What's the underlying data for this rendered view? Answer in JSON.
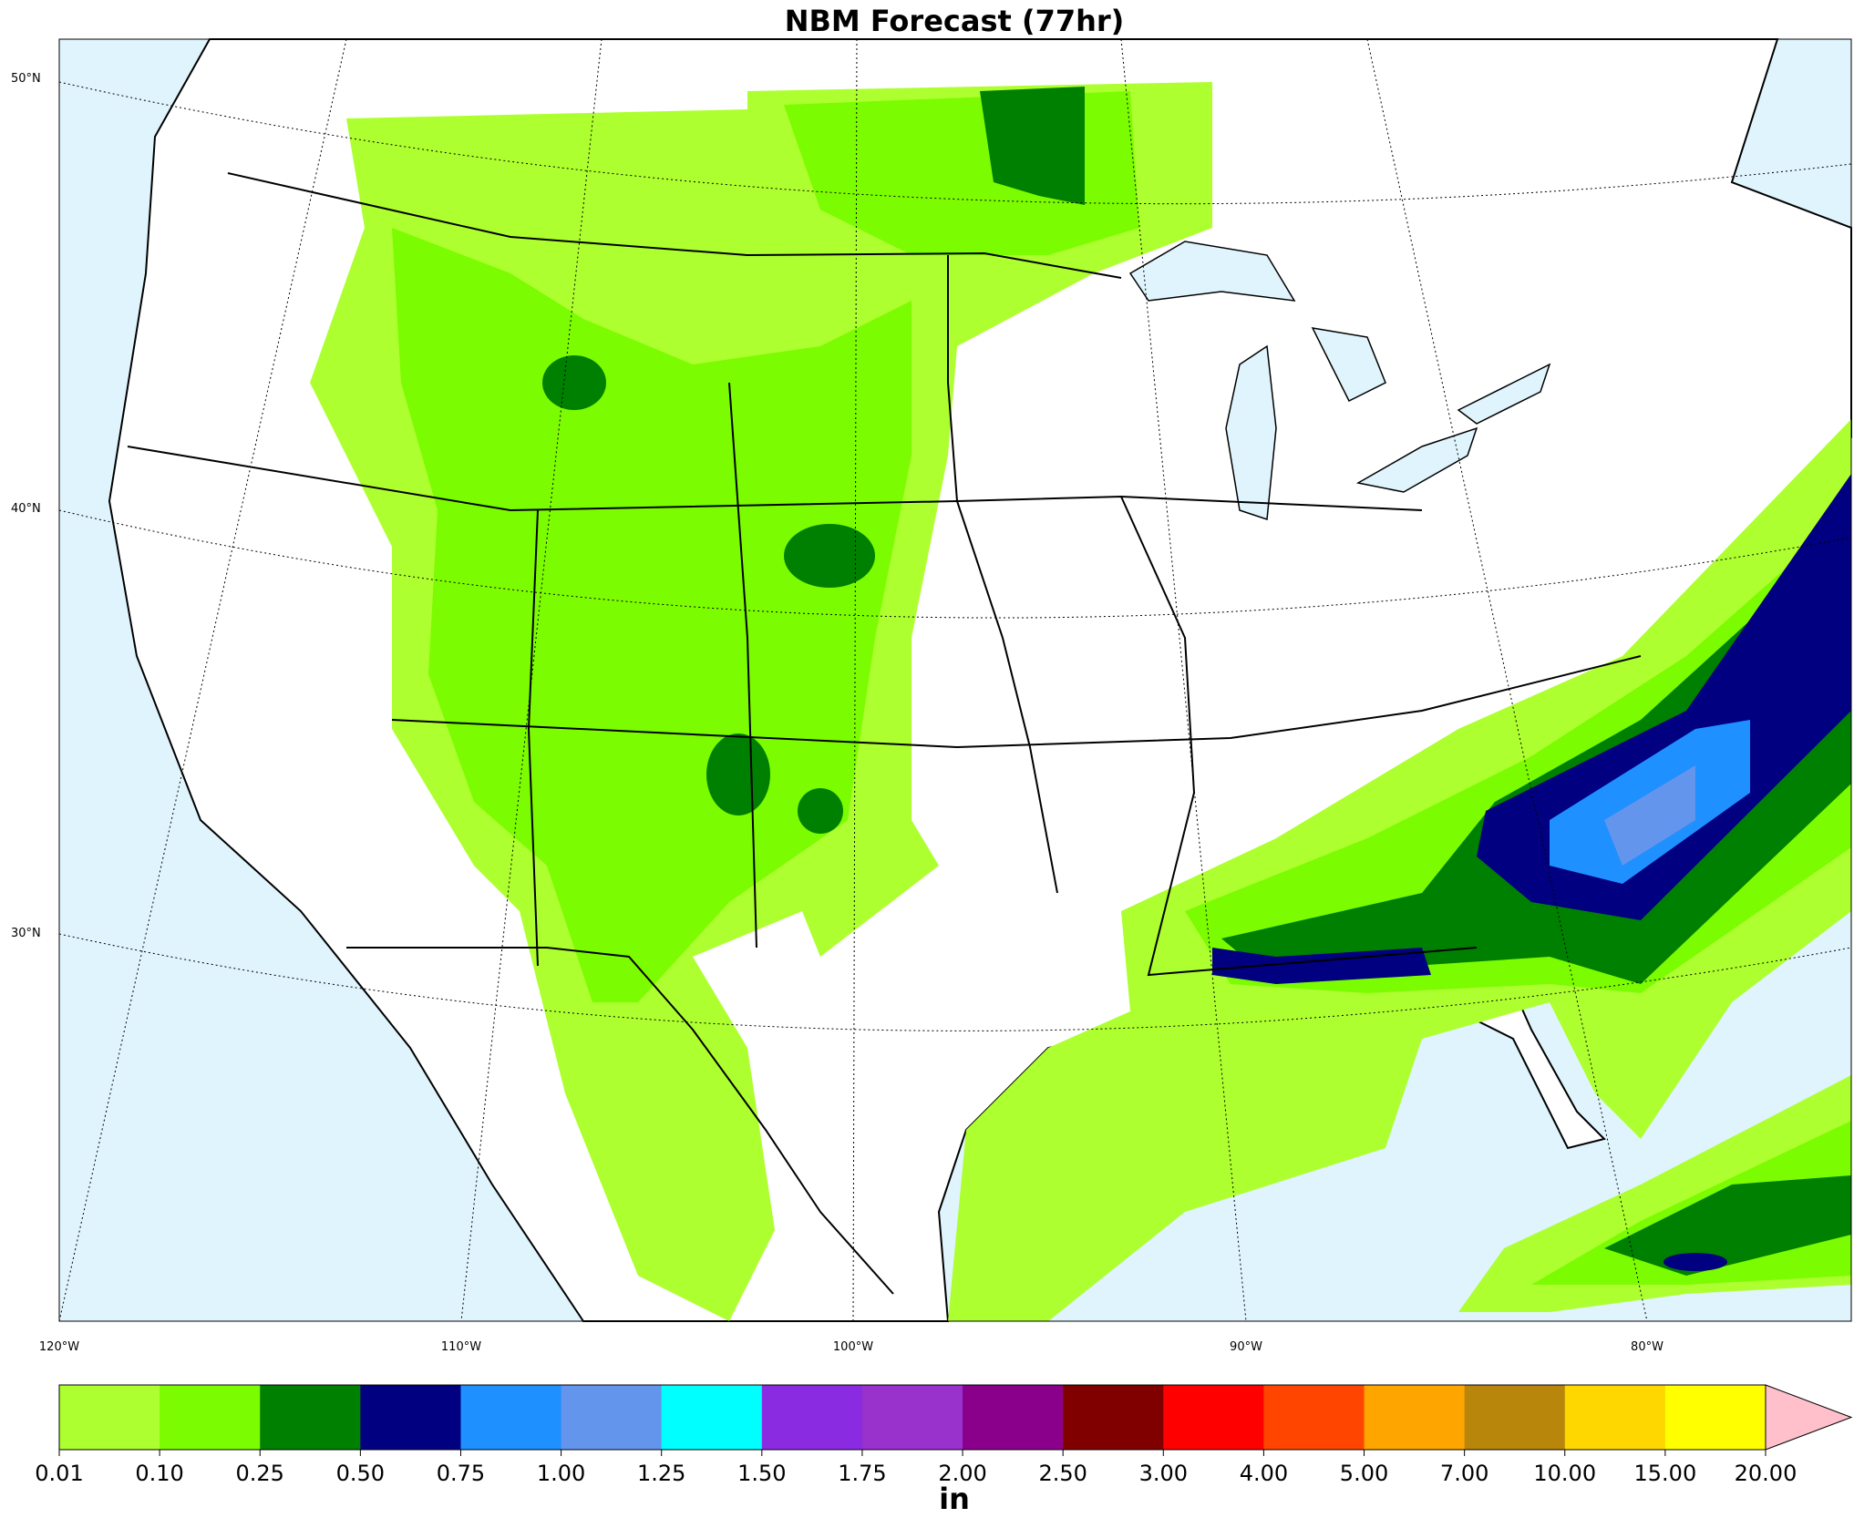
{
  "title": "NBM Forecast (77hr)",
  "map": {
    "lat_labels": [
      "50°N",
      "40°N",
      "30°N"
    ],
    "lon_labels": [
      "120°W",
      "110°W",
      "100°W",
      "90°W",
      "80°W"
    ]
  },
  "colorbar": {
    "type": "colorbar",
    "label": "in",
    "ticks": [
      {
        "value": 0.01,
        "label": "0.01"
      },
      {
        "value": 0.1,
        "label": "0.10"
      },
      {
        "value": 0.25,
        "label": "0.25"
      },
      {
        "value": 0.5,
        "label": "0.50"
      },
      {
        "value": 0.75,
        "label": "0.75"
      },
      {
        "value": 1,
        "label": "1.00"
      },
      {
        "value": 1.25,
        "label": "1.25"
      },
      {
        "value": 1.5,
        "label": "1.50"
      },
      {
        "value": 1.75,
        "label": "1.75"
      },
      {
        "value": 2,
        "label": "2.00"
      },
      {
        "value": 2.5,
        "label": "2.50"
      },
      {
        "value": 3,
        "label": "3.00"
      },
      {
        "value": 4,
        "label": "4.00"
      },
      {
        "value": 5,
        "label": "5.00"
      },
      {
        "value": 7,
        "label": "7.00"
      },
      {
        "value": 10,
        "label": "10.00"
      },
      {
        "value": 15,
        "label": "15.00"
      },
      {
        "value": 20,
        "label": "20.00"
      }
    ],
    "colors": [
      "#adff2f",
      "#7cfc00",
      "#008000",
      "#000080",
      "#1e90ff",
      "#6495ed",
      "#00ffff",
      "#8a2be2",
      "#9932cc",
      "#8b008b",
      "#800000",
      "#ff0000",
      "#ff4500",
      "#ffa500",
      "#b8860b",
      "#ffd700",
      "#ffff00"
    ],
    "extend_color": "#ffc0cb"
  }
}
